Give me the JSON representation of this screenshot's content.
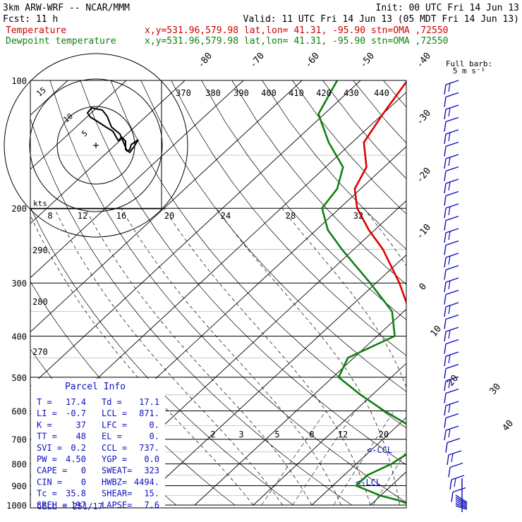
{
  "header": {
    "line1_left": "3km ARW-WRF -- NCAR/MMM",
    "line1_right": "Init: 00 UTC Fri 14 Jun 13",
    "line2_left": "Fcst:    11 h",
    "line2_right": "Valid: 11 UTC Fri 14 Jun 13 (05 MDT Fri 14 Jun 13)",
    "temp_label": "Temperature",
    "dew_label": "Dewpoint temperature",
    "location": "x,y=531.96,579.98   lat,lon= 41.31, -95.90  stn=OMA ,72550"
  },
  "legend": {
    "line1": "Full barb:",
    "line2": "5 m s⁻¹"
  },
  "colors": {
    "temperature": "#e00000",
    "dewpoint": "#108010",
    "parcel_text": "#1010c0",
    "barbs": "#1010c0"
  },
  "chart_data": {
    "type": "line",
    "diagram": "skew-T log-p",
    "y_axis": {
      "pressure_ticks": [
        "100",
        "200",
        "300",
        "400",
        "500",
        "600",
        "700",
        "800",
        "900",
        "1000"
      ]
    },
    "isotherm_labels": [
      "-80",
      "-70",
      "-60",
      "-50",
      "-40",
      "-30",
      "-20",
      "-10",
      "0",
      "10",
      "20",
      "30",
      "40"
    ],
    "theta_e_labels": [
      "370",
      "380",
      "390",
      "400",
      "410",
      "420",
      "430",
      "440"
    ],
    "theta_labels": [
      "290",
      "280",
      "270"
    ],
    "mixing_ratio_labels": [
      "2",
      "3",
      "5",
      "8",
      "12",
      "20"
    ],
    "hodograph": {
      "speed_unit": "kts",
      "speed_labels": [
        "8",
        "12",
        "16",
        "20",
        "24",
        "28",
        "32"
      ],
      "ring_labels": [
        "5",
        "10",
        "15"
      ]
    },
    "series": [
      {
        "name": "Temperature",
        "points": [
          {
            "p": 1000,
            "t": 17.4
          },
          {
            "p": 990,
            "t": 20
          },
          {
            "p": 975,
            "t": 21.5
          },
          {
            "p": 950,
            "t": 21
          },
          {
            "p": 925,
            "t": 20.5
          },
          {
            "p": 900,
            "t": 20
          },
          {
            "p": 850,
            "t": 19
          },
          {
            "p": 800,
            "t": 17.5
          },
          {
            "p": 750,
            "t": 14.5
          },
          {
            "p": 700,
            "t": 11.5
          },
          {
            "p": 650,
            "t": 8
          },
          {
            "p": 600,
            "t": 4
          },
          {
            "p": 550,
            "t": 0
          },
          {
            "p": 500,
            "t": -4.5
          },
          {
            "p": 450,
            "t": -10
          },
          {
            "p": 400,
            "t": -13
          },
          {
            "p": 350,
            "t": -19
          },
          {
            "p": 300,
            "t": -26
          },
          {
            "p": 250,
            "t": -35
          },
          {
            "p": 225,
            "t": -41
          },
          {
            "p": 200,
            "t": -47
          },
          {
            "p": 180,
            "t": -51
          },
          {
            "p": 160,
            "t": -53
          },
          {
            "p": 140,
            "t": -58
          },
          {
            "p": 120,
            "t": -60
          },
          {
            "p": 100,
            "t": -62
          }
        ]
      },
      {
        "name": "Dewpoint temperature",
        "points": [
          {
            "p": 1000,
            "t": 17.1
          },
          {
            "p": 975,
            "t": 14
          },
          {
            "p": 950,
            "t": 10
          },
          {
            "p": 925,
            "t": 7
          },
          {
            "p": 900,
            "t": 4
          },
          {
            "p": 850,
            "t": 4
          },
          {
            "p": 800,
            "t": 6
          },
          {
            "p": 750,
            "t": 7
          },
          {
            "p": 700,
            "t": 6
          },
          {
            "p": 650,
            "t": 2
          },
          {
            "p": 600,
            "t": -5
          },
          {
            "p": 550,
            "t": -12
          },
          {
            "p": 500,
            "t": -19
          },
          {
            "p": 450,
            "t": -21
          },
          {
            "p": 400,
            "t": -17
          },
          {
            "p": 350,
            "t": -22
          },
          {
            "p": 300,
            "t": -31
          },
          {
            "p": 250,
            "t": -42
          },
          {
            "p": 225,
            "t": -48
          },
          {
            "p": 200,
            "t": -53
          },
          {
            "p": 180,
            "t": -54
          },
          {
            "p": 160,
            "t": -57
          },
          {
            "p": 140,
            "t": -64
          },
          {
            "p": 120,
            "t": -71
          },
          {
            "p": 100,
            "t": -74
          }
        ]
      }
    ],
    "annotations": {
      "ccl": "<-CCL",
      "lcl": "<-LCL"
    }
  },
  "parcel_info": {
    "title": "Parcel Info",
    "rows": [
      {
        "k1": "T  =",
        "v1": "17.4",
        "k2": "Td =",
        "v2": "17.1"
      },
      {
        "k1": "LI =",
        "v1": "-0.7",
        "k2": "LCL =",
        "v2": "871."
      },
      {
        "k1": "K  =",
        "v1": "37",
        "k2": "LFC =",
        "v2": "0."
      },
      {
        "k1": "TT =",
        "v1": "48",
        "k2": "EL =",
        "v2": "0."
      },
      {
        "k1": "SVI =",
        "v1": "0.2",
        "k2": "CCL =",
        "v2": "737."
      },
      {
        "k1": "PW =",
        "v1": "4.50",
        "k2": "YGP =",
        "v2": "0.0"
      },
      {
        "k1": "CAPE =",
        "v1": "0",
        "k2": "SWEAT=",
        "v2": "323"
      },
      {
        "k1": "CIN =",
        "v1": "0",
        "k2": "HWBZ=",
        "v2": "4494."
      },
      {
        "k1": "Tc =",
        "v1": "35.8",
        "k2": "SHEAR=",
        "v2": "15."
      },
      {
        "k1": "SREH =",
        "v1": "197",
        "k2": "LAPSE=",
        "v2": "7.6"
      }
    ],
    "cell": "CELL = 251/17"
  }
}
